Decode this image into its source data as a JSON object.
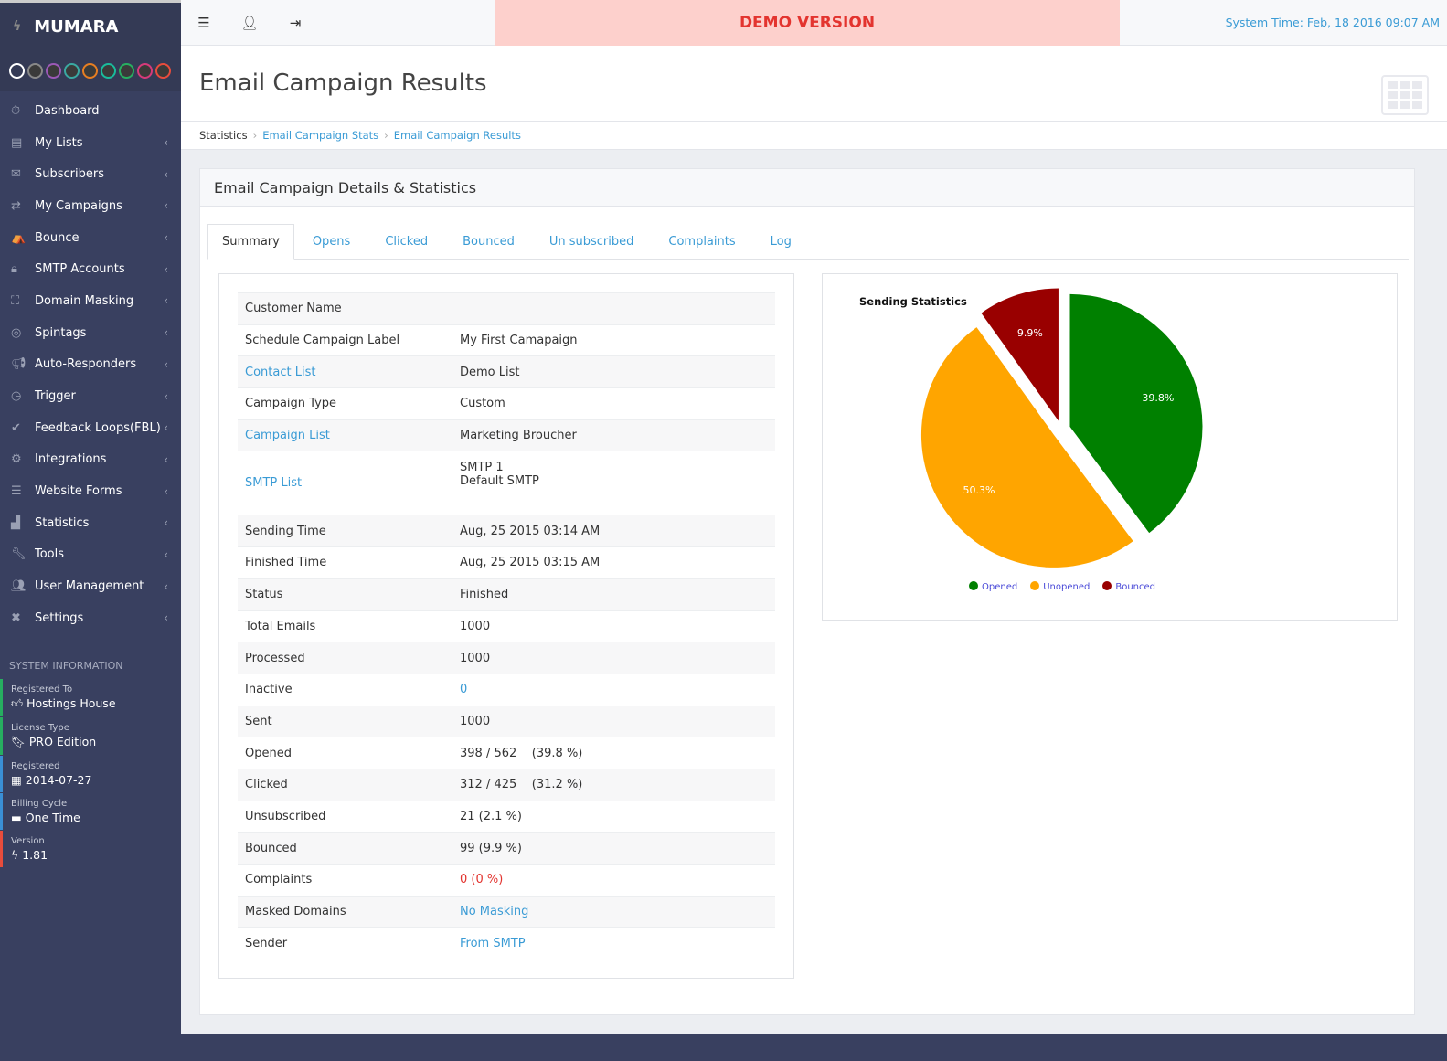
{
  "brand": "MUMARA",
  "theme_swatches": [
    "#ffffff",
    "#888888",
    "#9b59b6",
    "#3aa9a2",
    "#e67e22",
    "#1abc9c",
    "#27ae60",
    "#d63a7a",
    "#e74c3c"
  ],
  "nav": [
    {
      "label": "Dashboard",
      "icon": "stopwatch-icon",
      "glyph": "⏱",
      "chev": false
    },
    {
      "label": "My Lists",
      "icon": "clipboard-icon",
      "glyph": "▤",
      "chev": true
    },
    {
      "label": "Subscribers",
      "icon": "envelope-icon",
      "glyph": "✉",
      "chev": true
    },
    {
      "label": "My Campaigns",
      "icon": "exchange-icon",
      "glyph": "⇄",
      "chev": true
    },
    {
      "label": "Bounce",
      "icon": "bounce-icon",
      "glyph": "⛺",
      "chev": true
    },
    {
      "label": "SMTP Accounts",
      "icon": "lock-icon",
      "glyph": "🔒︎",
      "chev": true
    },
    {
      "label": "Domain Masking",
      "icon": "sitemap-icon",
      "glyph": "⛶",
      "chev": true
    },
    {
      "label": "Spintags",
      "icon": "spin-icon",
      "glyph": "◎",
      "chev": true
    },
    {
      "label": "Auto-Responders",
      "icon": "bullhorn-icon",
      "glyph": "📢︎",
      "chev": true
    },
    {
      "label": "Trigger",
      "icon": "clock-icon",
      "glyph": "◷",
      "chev": true
    },
    {
      "label": "Feedback Loops(FBL)",
      "icon": "check-circle-icon",
      "glyph": "✔",
      "chev": true
    },
    {
      "label": "Integrations",
      "icon": "cogs-icon",
      "glyph": "⚙",
      "chev": true
    },
    {
      "label": "Website Forms",
      "icon": "list-icon",
      "glyph": "☰",
      "chev": true
    },
    {
      "label": "Statistics",
      "icon": "bar-chart-icon",
      "glyph": "▟",
      "chev": true
    },
    {
      "label": "Tools",
      "icon": "wrench-icon",
      "glyph": "🔧︎",
      "chev": true
    },
    {
      "label": "User Management",
      "icon": "users-icon",
      "glyph": "👥︎",
      "chev": true
    },
    {
      "label": "Settings",
      "icon": "tools-icon",
      "glyph": "✖",
      "chev": true
    }
  ],
  "system_info": {
    "heading": "SYSTEM INFORMATION",
    "items": [
      {
        "key": "Registered To",
        "value": "Hostings House",
        "glyph": "👍︎",
        "color": "#27ae60"
      },
      {
        "key": "License Type",
        "value": "PRO Edition",
        "glyph": "🔖︎",
        "color": "#27ae60"
      },
      {
        "key": "Registered",
        "value": "2014-07-27",
        "glyph": "▦",
        "color": "#3a8fd5"
      },
      {
        "key": "Billing Cycle",
        "value": "One Time",
        "glyph": "▬",
        "color": "#3a8fd5"
      },
      {
        "key": "Version",
        "value": "1.81",
        "glyph": "ϟ",
        "color": "#e74c3c"
      }
    ]
  },
  "topbar": {
    "demo": "DEMO VERSION",
    "system_time": "System Time: Feb, 18 2016 09:07 AM"
  },
  "page_title": "Email Campaign Results",
  "breadcrumb": [
    "Statistics",
    "Email Campaign Stats",
    "Email Campaign Results"
  ],
  "panel_title": "Email Campaign Details & Statistics",
  "tabs": [
    "Summary",
    "Opens",
    "Clicked",
    "Bounced",
    "Un subscribed",
    "Complaints",
    "Log"
  ],
  "details": [
    {
      "k": "Customer Name",
      "v": ""
    },
    {
      "k": "Schedule Campaign Label",
      "v": "My First Camapaign"
    },
    {
      "k": "Contact List",
      "v": "Demo List",
      "klink": true
    },
    {
      "k": "Campaign Type",
      "v": "Custom"
    },
    {
      "k": "Campaign List",
      "v": "Marketing Broucher",
      "klink": true
    },
    {
      "k": "SMTP List",
      "v": "SMTP 1",
      "v2": "Default SMTP",
      "klink": true
    },
    {
      "k": "Sending Time",
      "v": "Aug, 25 2015 03:14 AM"
    },
    {
      "k": "Finished Time",
      "v": "Aug, 25 2015 03:15 AM"
    },
    {
      "k": "Status",
      "v": "Finished"
    },
    {
      "k": "Total Emails",
      "v": "1000"
    },
    {
      "k": "Processed",
      "v": "1000"
    },
    {
      "k": "Inactive",
      "v": "0",
      "vclass": "link"
    },
    {
      "k": "Sent",
      "v": "1000"
    },
    {
      "k": "Opened",
      "v": "398 / 562    (39.8 %)"
    },
    {
      "k": "Clicked",
      "v": "312 / 425    (31.2 %)"
    },
    {
      "k": "Unsubscribed",
      "v": "21 (2.1 %)"
    },
    {
      "k": "Bounced",
      "v": "99 (9.9 %)"
    },
    {
      "k": "Complaints",
      "v": "0 (0 %)",
      "vclass": "red"
    },
    {
      "k": "Masked Domains",
      "v": "No Masking",
      "vclass": "link"
    },
    {
      "k": "Sender",
      "v": "From SMTP",
      "vclass": "link"
    }
  ],
  "chart_data": {
    "type": "pie",
    "title": "Sending Statistics",
    "categories": [
      "Opened",
      "Unopened",
      "Bounced"
    ],
    "values": [
      39.8,
      50.3,
      9.9
    ],
    "labels": [
      "39.8%",
      "50.3%",
      "9.9%"
    ],
    "colors": [
      "#008000",
      "#ffa500",
      "#990000"
    ],
    "legend": "bottom"
  }
}
